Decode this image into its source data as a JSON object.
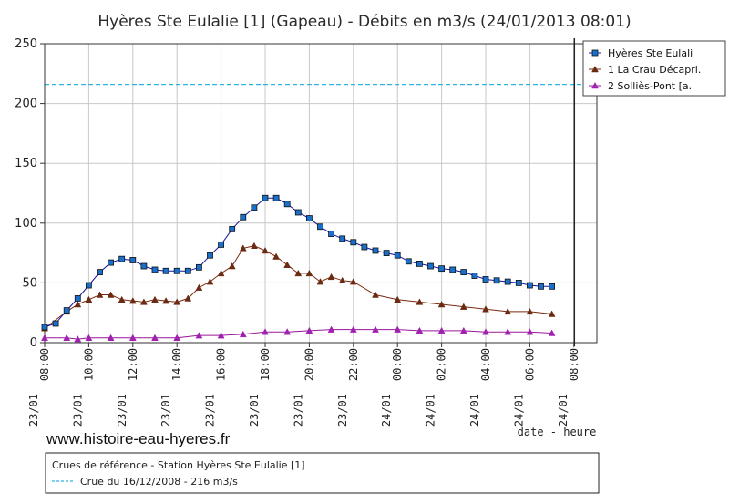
{
  "chart_data": {
    "type": "line",
    "title": "Hyères Ste Eulalie [1] (Gapeau) - Débits en m3/s (24/01/2013 08:01)",
    "xlabel": "date - heure",
    "ylabel": "",
    "ylim": [
      0,
      250
    ],
    "yticks": [
      "0",
      "50",
      "100",
      "150",
      "200",
      "250"
    ],
    "xlim": [
      0,
      24
    ],
    "xticks": [
      {
        "x": 0,
        "date": "23/01",
        "time": "08:00"
      },
      {
        "x": 2,
        "date": "23/01",
        "time": "10:00"
      },
      {
        "x": 4,
        "date": "23/01",
        "time": "12:00"
      },
      {
        "x": 6,
        "date": "23/01",
        "time": "14:00"
      },
      {
        "x": 8,
        "date": "23/01",
        "time": "16:00"
      },
      {
        "x": 10,
        "date": "23/01",
        "time": "18:00"
      },
      {
        "x": 12,
        "date": "23/01",
        "time": "20:00"
      },
      {
        "x": 14,
        "date": "23/01",
        "time": "22:00"
      },
      {
        "x": 16,
        "date": "24/01",
        "time": "00:00"
      },
      {
        "x": 18,
        "date": "24/01",
        "time": "02:00"
      },
      {
        "x": 20,
        "date": "24/01",
        "time": "04:00"
      },
      {
        "x": 22,
        "date": "24/01",
        "time": "06:00"
      },
      {
        "x": 24,
        "date": "24/01",
        "time": "08:00"
      }
    ],
    "grid": true,
    "legend_position": "top-right",
    "reference_line": {
      "y": 216,
      "color": "#2bb5e8"
    },
    "current_time_x": 24.02,
    "series": [
      {
        "name": "Hyères Ste Eulali",
        "color": "#1515a0",
        "marker": "square",
        "marker_color": "#1a6fc9",
        "x": [
          0,
          0.5,
          1,
          1.5,
          2,
          2.5,
          3,
          3.5,
          4,
          4.5,
          5,
          5.5,
          6,
          6.5,
          7,
          7.5,
          8,
          8.5,
          9,
          9.5,
          10,
          10.5,
          11,
          11.5,
          12,
          12.5,
          13,
          13.5,
          14,
          14.5,
          15,
          15.5,
          16,
          16.5,
          17,
          17.5,
          18,
          18.5,
          19,
          19.5,
          20,
          20.5,
          21,
          21.5,
          22,
          22.5,
          23
        ],
        "y": [
          13,
          16,
          27,
          37,
          48,
          59,
          67,
          70,
          69,
          64,
          61,
          60,
          60,
          60,
          63,
          73,
          82,
          95,
          105,
          113,
          121,
          121,
          116,
          109,
          104,
          97,
          91,
          87,
          84,
          80,
          77,
          75,
          73,
          68,
          66,
          64,
          62,
          61,
          59,
          56,
          53,
          52,
          51,
          50,
          48,
          47,
          47
        ]
      },
      {
        "name": "1 La Crau Décapri.",
        "color": "#7a2a10",
        "marker": "triangle",
        "marker_color": "#6b2a12",
        "x": [
          0,
          1,
          1.5,
          2,
          2.5,
          3,
          3.5,
          4,
          4.5,
          5,
          5.5,
          6,
          6.5,
          7,
          7.5,
          8,
          8.5,
          9,
          9.5,
          10,
          10.5,
          11,
          11.5,
          12,
          12.5,
          13,
          13.5,
          14,
          15,
          16,
          17,
          18,
          19,
          20,
          21,
          22,
          23
        ],
        "y": [
          12,
          26,
          32,
          36,
          40,
          40,
          36,
          35,
          34,
          36,
          35,
          34,
          37,
          46,
          51,
          58,
          64,
          79,
          81,
          77,
          72,
          65,
          58,
          58,
          51,
          55,
          52,
          51,
          40,
          36,
          34,
          32,
          30,
          28,
          26,
          26,
          24
        ]
      },
      {
        "name": "2 Solliès-Pont [a.",
        "color": "#9a169a",
        "marker": "triangle",
        "marker_color": "#a020b0",
        "x": [
          0,
          1,
          1.5,
          2,
          3,
          4,
          5,
          6,
          7,
          8,
          9,
          10,
          11,
          12,
          13,
          14,
          15,
          16,
          17,
          18,
          19,
          20,
          21,
          22,
          23
        ],
        "y": [
          4,
          4,
          3,
          4,
          4,
          4,
          4,
          4,
          6,
          6,
          7,
          9,
          9,
          10,
          11,
          11,
          11,
          11,
          10,
          10,
          10,
          9,
          9,
          9,
          8
        ]
      }
    ]
  },
  "site_url": "www.histoire-eau-hyeres.fr",
  "reference_box": {
    "title": "Crues de référence - Station Hyères Ste Eulalie [1]",
    "entries": [
      {
        "label": "Crue du 16/12/2008 - 216 m3/s",
        "color": "#2bb5e8"
      }
    ]
  }
}
